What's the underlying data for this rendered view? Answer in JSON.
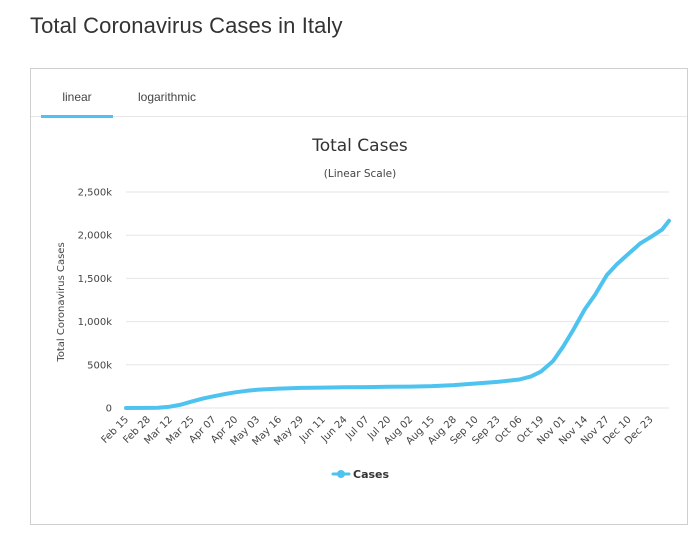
{
  "page": {
    "title": "Total Coronavirus Cases in Italy"
  },
  "tabs": [
    {
      "label": "linear",
      "active": true
    },
    {
      "label": "logarithmic",
      "active": false
    }
  ],
  "colors": {
    "series": "#4fc3f0",
    "tab_underline": "#4fc3f0",
    "grid": "#e6e6e6"
  },
  "chart_data": {
    "type": "line",
    "title": "Total Cases",
    "subtitle": "(Linear Scale)",
    "ylabel": "Total Coronavirus Cases",
    "xlabel": "",
    "yscale": "linear",
    "ylim": [
      0,
      2500000
    ],
    "yticks": [
      {
        "value": 0,
        "label": "0"
      },
      {
        "value": 500000,
        "label": "500k"
      },
      {
        "value": 1000000,
        "label": "1,000k"
      },
      {
        "value": 1500000,
        "label": "1,500k"
      },
      {
        "value": 2000000,
        "label": "2,000k"
      },
      {
        "value": 2500000,
        "label": "2,500k"
      }
    ],
    "xticks": [
      "Feb 15",
      "Feb 28",
      "Mar 12",
      "Mar 25",
      "Apr 07",
      "Apr 20",
      "May 03",
      "May 16",
      "May 29",
      "Jun 11",
      "Jun 24",
      "Jul 07",
      "Jul 20",
      "Aug 02",
      "Aug 15",
      "Aug 28",
      "Sep 10",
      "Sep 23",
      "Oct 06",
      "Oct 19",
      "Nov 01",
      "Nov 14",
      "Nov 27",
      "Dec 10",
      "Dec 23"
    ],
    "x_range": [
      "Feb 15",
      "Jan 03"
    ],
    "grid": true,
    "legend": {
      "position": "bottom-center"
    },
    "series": [
      {
        "name": "Cases",
        "x": [
          "Feb 15",
          "Feb 28",
          "Mar 05",
          "Mar 12",
          "Mar 18",
          "Mar 25",
          "Apr 01",
          "Apr 07",
          "Apr 14",
          "Apr 20",
          "Apr 27",
          "May 03",
          "May 10",
          "May 16",
          "May 29",
          "Jun 11",
          "Jun 24",
          "Jul 07",
          "Jul 20",
          "Aug 02",
          "Aug 15",
          "Aug 28",
          "Sep 10",
          "Sep 23",
          "Oct 06",
          "Oct 13",
          "Oct 19",
          "Oct 26",
          "Nov 01",
          "Nov 07",
          "Nov 14",
          "Nov 20",
          "Nov 27",
          "Dec 03",
          "Dec 10",
          "Dec 17",
          "Dec 23",
          "Dec 30",
          "Jan 03"
        ],
        "values": [
          3,
          888,
          3858,
          15113,
          35713,
          74386,
          110574,
          135586,
          162488,
          181228,
          199414,
          210717,
          219070,
          224760,
          232248,
          235763,
          239706,
          242363,
          245032,
          248229,
          253915,
          265409,
          283180,
          302537,
          330263,
          365467,
          423578,
          542789,
          709335,
          902490,
          1144552,
          1308528,
          1538217,
          1664829,
          1787147,
          1906377,
          1977370,
          2067487,
          2166244
        ]
      }
    ]
  }
}
